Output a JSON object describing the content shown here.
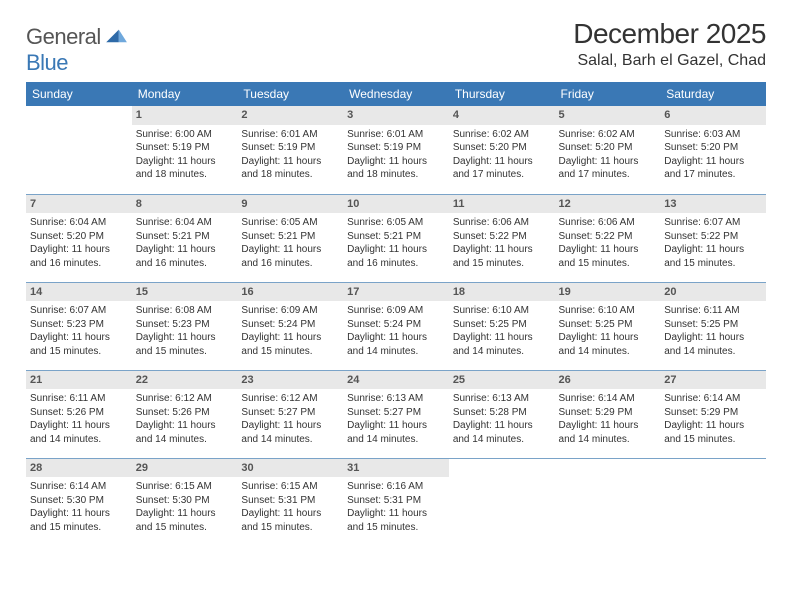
{
  "brand": {
    "part1": "General",
    "part2": "Blue"
  },
  "title": "December 2025",
  "location": "Salal, Barh el Gazel, Chad",
  "colors": {
    "header_bg": "#3a78b5",
    "header_text": "#ffffff",
    "daynum_bg": "#e8e8e8",
    "row_divider": "#7aa3c8",
    "body_text": "#333333"
  },
  "dow": [
    "Sunday",
    "Monday",
    "Tuesday",
    "Wednesday",
    "Thursday",
    "Friday",
    "Saturday"
  ],
  "weeks": [
    [
      {
        "n": "",
        "sr": "",
        "ss": "",
        "dl": ""
      },
      {
        "n": "1",
        "sr": "Sunrise: 6:00 AM",
        "ss": "Sunset: 5:19 PM",
        "dl": "Daylight: 11 hours and 18 minutes."
      },
      {
        "n": "2",
        "sr": "Sunrise: 6:01 AM",
        "ss": "Sunset: 5:19 PM",
        "dl": "Daylight: 11 hours and 18 minutes."
      },
      {
        "n": "3",
        "sr": "Sunrise: 6:01 AM",
        "ss": "Sunset: 5:19 PM",
        "dl": "Daylight: 11 hours and 18 minutes."
      },
      {
        "n": "4",
        "sr": "Sunrise: 6:02 AM",
        "ss": "Sunset: 5:20 PM",
        "dl": "Daylight: 11 hours and 17 minutes."
      },
      {
        "n": "5",
        "sr": "Sunrise: 6:02 AM",
        "ss": "Sunset: 5:20 PM",
        "dl": "Daylight: 11 hours and 17 minutes."
      },
      {
        "n": "6",
        "sr": "Sunrise: 6:03 AM",
        "ss": "Sunset: 5:20 PM",
        "dl": "Daylight: 11 hours and 17 minutes."
      }
    ],
    [
      {
        "n": "7",
        "sr": "Sunrise: 6:04 AM",
        "ss": "Sunset: 5:20 PM",
        "dl": "Daylight: 11 hours and 16 minutes."
      },
      {
        "n": "8",
        "sr": "Sunrise: 6:04 AM",
        "ss": "Sunset: 5:21 PM",
        "dl": "Daylight: 11 hours and 16 minutes."
      },
      {
        "n": "9",
        "sr": "Sunrise: 6:05 AM",
        "ss": "Sunset: 5:21 PM",
        "dl": "Daylight: 11 hours and 16 minutes."
      },
      {
        "n": "10",
        "sr": "Sunrise: 6:05 AM",
        "ss": "Sunset: 5:21 PM",
        "dl": "Daylight: 11 hours and 16 minutes."
      },
      {
        "n": "11",
        "sr": "Sunrise: 6:06 AM",
        "ss": "Sunset: 5:22 PM",
        "dl": "Daylight: 11 hours and 15 minutes."
      },
      {
        "n": "12",
        "sr": "Sunrise: 6:06 AM",
        "ss": "Sunset: 5:22 PM",
        "dl": "Daylight: 11 hours and 15 minutes."
      },
      {
        "n": "13",
        "sr": "Sunrise: 6:07 AM",
        "ss": "Sunset: 5:22 PM",
        "dl": "Daylight: 11 hours and 15 minutes."
      }
    ],
    [
      {
        "n": "14",
        "sr": "Sunrise: 6:07 AM",
        "ss": "Sunset: 5:23 PM",
        "dl": "Daylight: 11 hours and 15 minutes."
      },
      {
        "n": "15",
        "sr": "Sunrise: 6:08 AM",
        "ss": "Sunset: 5:23 PM",
        "dl": "Daylight: 11 hours and 15 minutes."
      },
      {
        "n": "16",
        "sr": "Sunrise: 6:09 AM",
        "ss": "Sunset: 5:24 PM",
        "dl": "Daylight: 11 hours and 15 minutes."
      },
      {
        "n": "17",
        "sr": "Sunrise: 6:09 AM",
        "ss": "Sunset: 5:24 PM",
        "dl": "Daylight: 11 hours and 14 minutes."
      },
      {
        "n": "18",
        "sr": "Sunrise: 6:10 AM",
        "ss": "Sunset: 5:25 PM",
        "dl": "Daylight: 11 hours and 14 minutes."
      },
      {
        "n": "19",
        "sr": "Sunrise: 6:10 AM",
        "ss": "Sunset: 5:25 PM",
        "dl": "Daylight: 11 hours and 14 minutes."
      },
      {
        "n": "20",
        "sr": "Sunrise: 6:11 AM",
        "ss": "Sunset: 5:25 PM",
        "dl": "Daylight: 11 hours and 14 minutes."
      }
    ],
    [
      {
        "n": "21",
        "sr": "Sunrise: 6:11 AM",
        "ss": "Sunset: 5:26 PM",
        "dl": "Daylight: 11 hours and 14 minutes."
      },
      {
        "n": "22",
        "sr": "Sunrise: 6:12 AM",
        "ss": "Sunset: 5:26 PM",
        "dl": "Daylight: 11 hours and 14 minutes."
      },
      {
        "n": "23",
        "sr": "Sunrise: 6:12 AM",
        "ss": "Sunset: 5:27 PM",
        "dl": "Daylight: 11 hours and 14 minutes."
      },
      {
        "n": "24",
        "sr": "Sunrise: 6:13 AM",
        "ss": "Sunset: 5:27 PM",
        "dl": "Daylight: 11 hours and 14 minutes."
      },
      {
        "n": "25",
        "sr": "Sunrise: 6:13 AM",
        "ss": "Sunset: 5:28 PM",
        "dl": "Daylight: 11 hours and 14 minutes."
      },
      {
        "n": "26",
        "sr": "Sunrise: 6:14 AM",
        "ss": "Sunset: 5:29 PM",
        "dl": "Daylight: 11 hours and 14 minutes."
      },
      {
        "n": "27",
        "sr": "Sunrise: 6:14 AM",
        "ss": "Sunset: 5:29 PM",
        "dl": "Daylight: 11 hours and 15 minutes."
      }
    ],
    [
      {
        "n": "28",
        "sr": "Sunrise: 6:14 AM",
        "ss": "Sunset: 5:30 PM",
        "dl": "Daylight: 11 hours and 15 minutes."
      },
      {
        "n": "29",
        "sr": "Sunrise: 6:15 AM",
        "ss": "Sunset: 5:30 PM",
        "dl": "Daylight: 11 hours and 15 minutes."
      },
      {
        "n": "30",
        "sr": "Sunrise: 6:15 AM",
        "ss": "Sunset: 5:31 PM",
        "dl": "Daylight: 11 hours and 15 minutes."
      },
      {
        "n": "31",
        "sr": "Sunrise: 6:16 AM",
        "ss": "Sunset: 5:31 PM",
        "dl": "Daylight: 11 hours and 15 minutes."
      },
      {
        "n": "",
        "sr": "",
        "ss": "",
        "dl": ""
      },
      {
        "n": "",
        "sr": "",
        "ss": "",
        "dl": ""
      },
      {
        "n": "",
        "sr": "",
        "ss": "",
        "dl": ""
      }
    ]
  ]
}
